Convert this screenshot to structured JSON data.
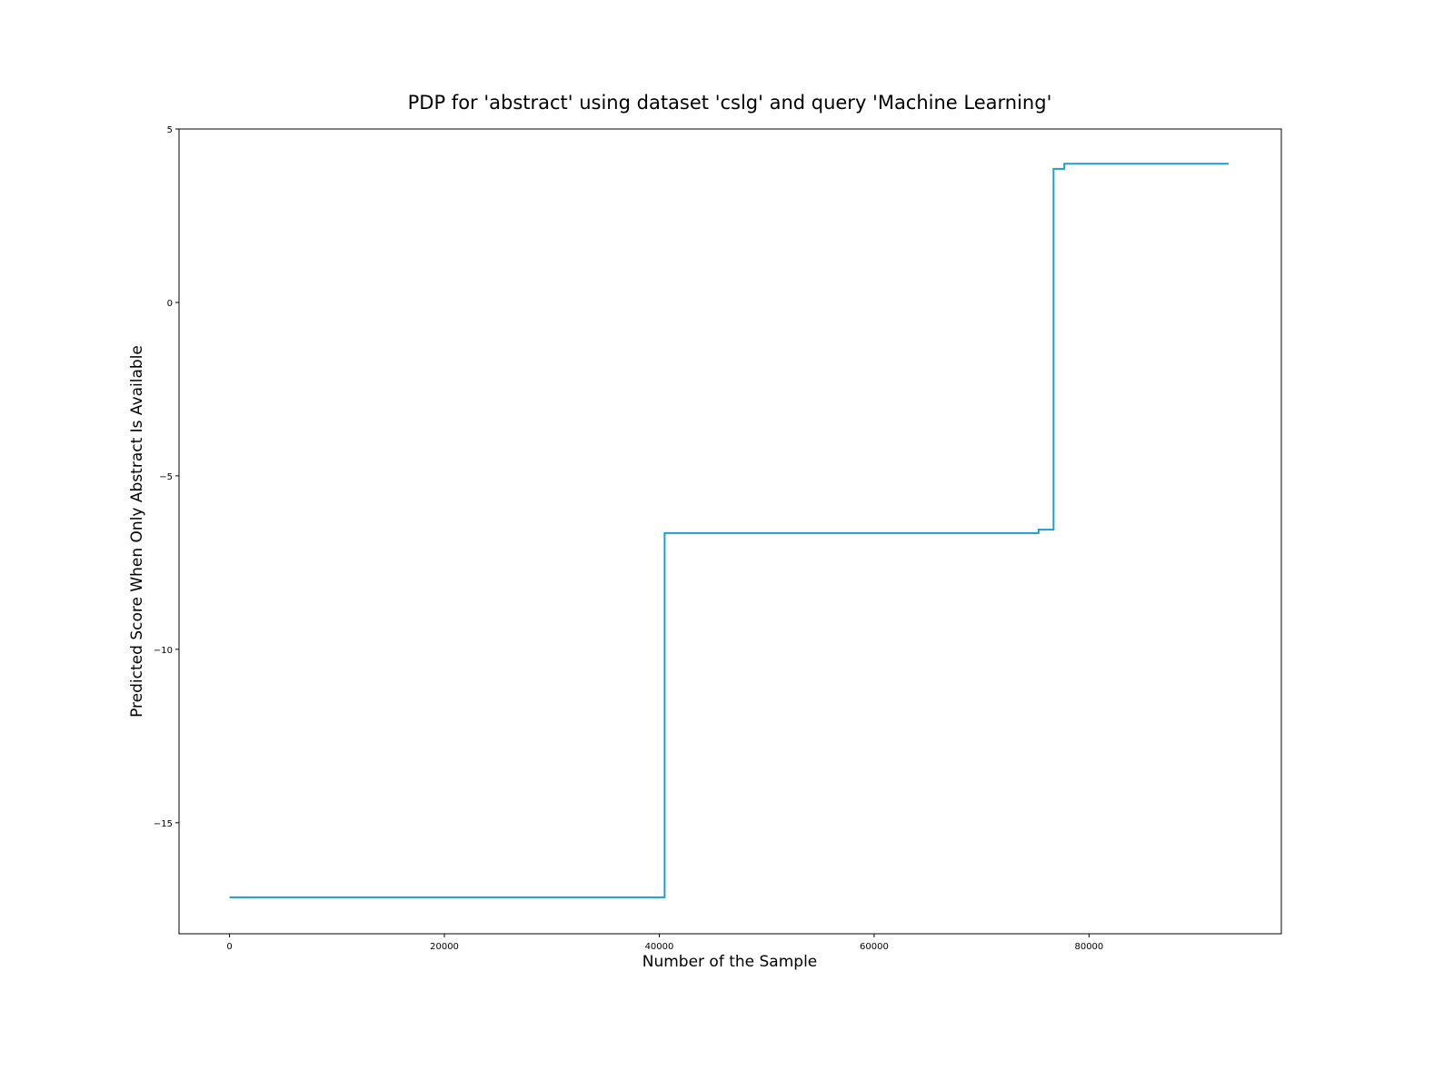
{
  "chart_data": {
    "type": "line",
    "title": "PDP for 'abstract' using dataset 'cslg' and query 'Machine Learning'",
    "xlabel": "Number of the Sample",
    "ylabel": "Predicted Score When Only Abstract Is Available",
    "xlim": [
      -4700,
      97900
    ],
    "ylim": [
      -18.2,
      5.0
    ],
    "xticks": [
      0,
      20000,
      40000,
      60000,
      80000
    ],
    "xtick_labels": [
      "0",
      "20000",
      "40000",
      "60000",
      "80000"
    ],
    "yticks": [
      5,
      0,
      -5,
      -10,
      -15
    ],
    "ytick_labels": [
      "5",
      "0",
      "−5",
      "−10",
      "−15"
    ],
    "grid": false,
    "legend": "none",
    "series": [
      {
        "color": "#1f9bd1",
        "step": "post",
        "x": [
          0,
          40500,
          75300,
          76700,
          77700,
          93000
        ],
        "y": [
          -17.15,
          -6.65,
          -6.55,
          3.85,
          4.0,
          4.0
        ]
      }
    ]
  }
}
